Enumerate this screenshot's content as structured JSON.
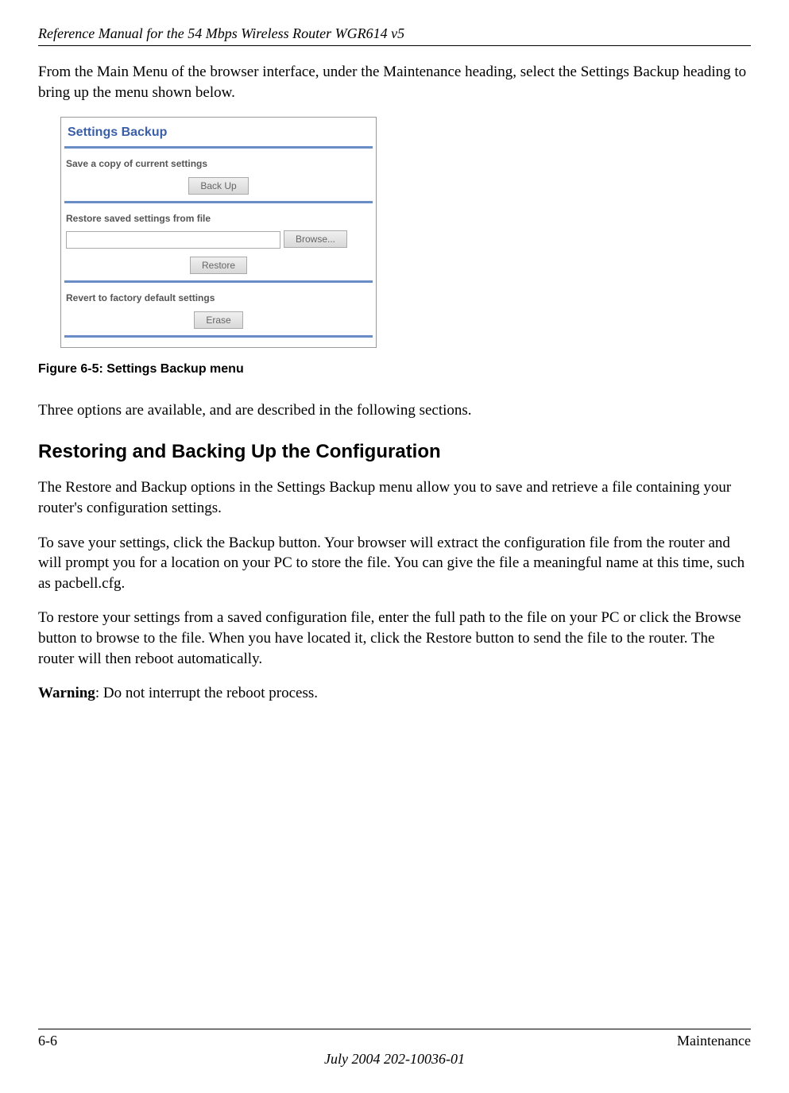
{
  "header": {
    "doc_title": "Reference Manual for the 54 Mbps Wireless Router WGR614 v5"
  },
  "intro": {
    "p1": "From the Main Menu of the browser interface, under the Maintenance heading, select the Settings Backup heading to bring up the menu shown below."
  },
  "screenshot": {
    "title": "Settings Backup",
    "title_color": "#3a5fa8",
    "accent_color": "#6a8cc7",
    "save_label": "Save a copy of current settings",
    "backup_btn": "Back Up",
    "restore_label": "Restore saved settings from file",
    "browse_btn": "Browse...",
    "restore_btn": "Restore",
    "revert_label": "Revert to factory default settings",
    "erase_btn": "Erase"
  },
  "figure_caption": "Figure 6-5:  Settings Backup menu",
  "p2": "Three options are available, and are described in the following sections.",
  "section_heading": "Restoring and Backing Up the Configuration",
  "p3": "The Restore and Backup options in the Settings Backup menu allow you to save and retrieve a file containing your router's configuration settings.",
  "p4": "To save your settings, click the Backup button. Your browser will extract the configuration file from the router and will prompt you for a location on your PC to store the file. You can give the file a meaningful name at this time, such as pacbell.cfg.",
  "p5": "To restore your settings from a saved configuration file, enter the full path to the file on your PC or click the Browse button to browse to the file. When you have located it, click the Restore button to send the file to the router. The router will then reboot automatically.",
  "warning_label": "Warning",
  "warning_text": ": Do not interrupt the reboot process.",
  "footer": {
    "page_num": "6-6",
    "section": "Maintenance",
    "date_id": "July 2004 202-10036-01"
  }
}
